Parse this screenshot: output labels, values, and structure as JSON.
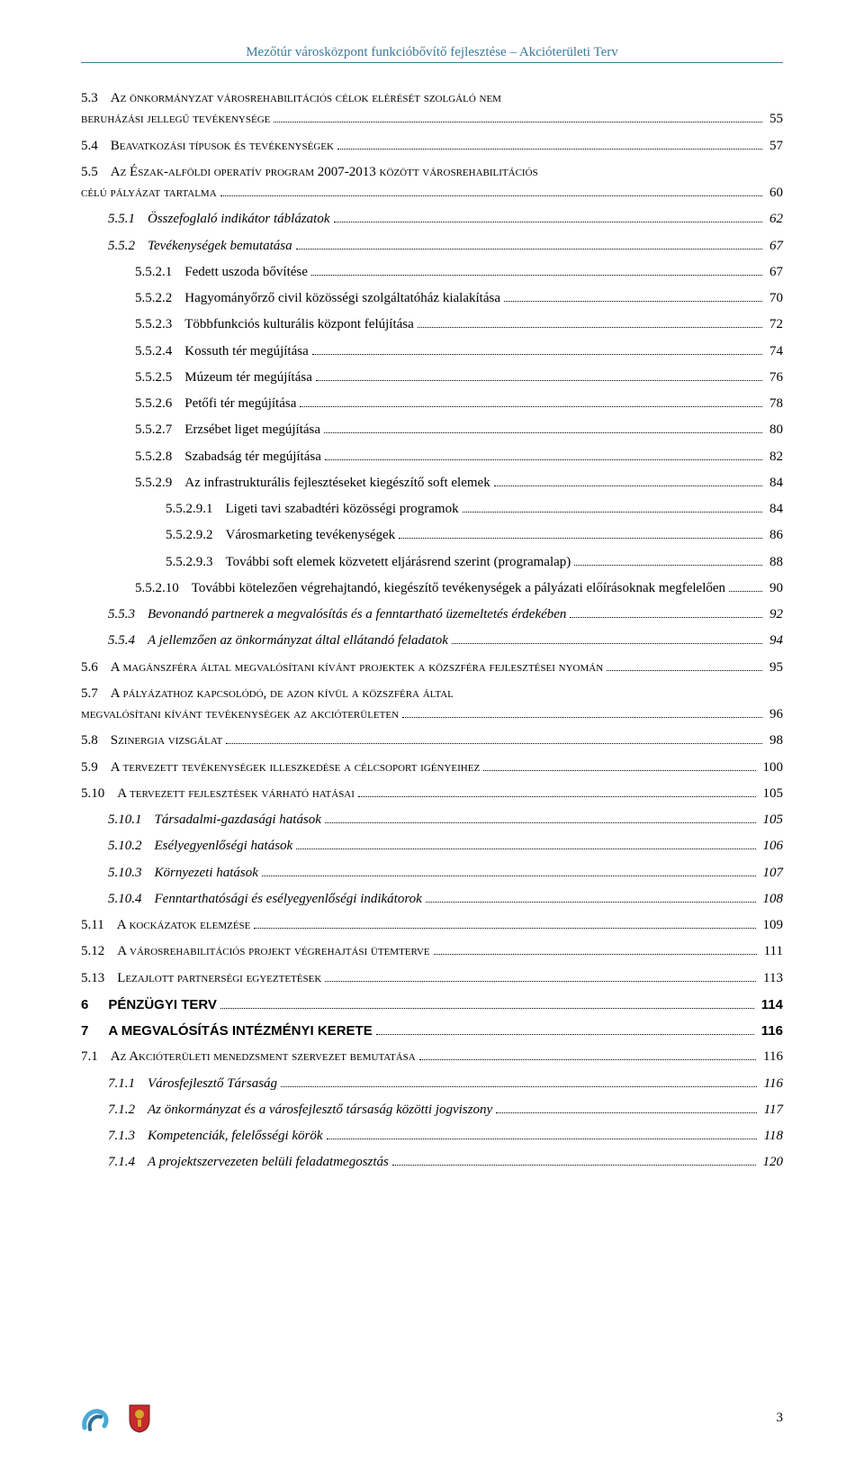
{
  "header": "Mezőtúr városközpont funkcióbővítő fejlesztése – Akcióterületi Terv",
  "pageNumber": "3",
  "colors": {
    "headerColor": "#3b7a9c",
    "text": "#000000",
    "iconBlue": "#4aa8d8",
    "iconRed": "#c52b2b",
    "iconGold": "#d4a82a"
  },
  "toc": [
    {
      "lvl": 1,
      "style": "smallcaps",
      "num": "5.3",
      "title": "Az önkormányzat városrehabilitációs célok elérését szolgáló nem beruházási jellegű tevékenysége",
      "page": "55",
      "wrap": true
    },
    {
      "lvl": 1,
      "style": "smallcaps",
      "num": "5.4",
      "title": "Beavatkozási típusok és tevékenységek",
      "page": "57"
    },
    {
      "lvl": 1,
      "style": "smallcaps",
      "num": "5.5",
      "title": "Az Észak-alföldi operatív program 2007-2013 között városrehabilitációs célú pályázat tartalma",
      "page": "60",
      "wrap": true
    },
    {
      "lvl": 2,
      "style": "italic",
      "num": "5.5.1",
      "title": "Összefoglaló indikátor táblázatok",
      "page": "62"
    },
    {
      "lvl": 2,
      "style": "italic",
      "num": "5.5.2",
      "title": "Tevékenységek bemutatása",
      "page": "67"
    },
    {
      "lvl": 3,
      "num": "5.5.2.1",
      "title": "Fedett uszoda bővítése",
      "page": "67"
    },
    {
      "lvl": 3,
      "num": "5.5.2.2",
      "title": "Hagyományőrző civil közösségi szolgáltatóház kialakítása",
      "page": "70"
    },
    {
      "lvl": 3,
      "num": "5.5.2.3",
      "title": "Többfunkciós kulturális központ felújítása",
      "page": "72"
    },
    {
      "lvl": 3,
      "num": "5.5.2.4",
      "title": "Kossuth tér megújítása",
      "page": "74"
    },
    {
      "lvl": 3,
      "num": "5.5.2.5",
      "title": "Múzeum tér megújítása",
      "page": "76"
    },
    {
      "lvl": 3,
      "num": "5.5.2.6",
      "title": "Petőfi tér megújítása",
      "page": "78"
    },
    {
      "lvl": 3,
      "num": "5.5.2.7",
      "title": "Erzsébet liget megújítása",
      "page": "80"
    },
    {
      "lvl": 3,
      "num": "5.5.2.8",
      "title": "Szabadság tér megújítása",
      "page": "82"
    },
    {
      "lvl": 3,
      "num": "5.5.2.9",
      "title": "Az infrastrukturális fejlesztéseket kiegészítő soft elemek",
      "page": "84"
    },
    {
      "lvl": 4,
      "num": "5.5.2.9.1",
      "title": "Ligeti tavi szabadtéri közösségi programok",
      "page": "84"
    },
    {
      "lvl": 4,
      "num": "5.5.2.9.2",
      "title": "Városmarketing tevékenységek",
      "page": "86"
    },
    {
      "lvl": 4,
      "num": "5.5.2.9.3",
      "title": "További soft elemek közvetett eljárásrend szerint (programalap)",
      "page": "88"
    },
    {
      "lvl": 3,
      "num": "5.5.2.10",
      "title": "További kötelezően végrehajtandó, kiegészítő tevékenységek a pályázati előírásoknak megfelelően",
      "page": "90"
    },
    {
      "lvl": 2,
      "style": "italic",
      "num": "5.5.3",
      "title": "Bevonandó partnerek a megvalósítás és a fenntartható üzemeltetés érdekében",
      "page": "92"
    },
    {
      "lvl": 2,
      "style": "italic",
      "num": "5.5.4",
      "title": "A jellemzően az önkormányzat által ellátandó feladatok",
      "page": "94"
    },
    {
      "lvl": 1,
      "style": "smallcaps",
      "num": "5.6",
      "title": "A magánszféra által megvalósítani kívánt projektek a közszféra fejlesztései nyomán",
      "page": "95"
    },
    {
      "lvl": 1,
      "style": "smallcaps",
      "num": "5.7",
      "title": "A pályázathoz kapcsolódó, de azon kívül a közszféra által megvalósítani kívánt tevékenységek az akcióterületen",
      "page": "96",
      "wrap": true
    },
    {
      "lvl": 1,
      "style": "smallcaps",
      "num": "5.8",
      "title": "Szinergia vizsgálat",
      "page": "98"
    },
    {
      "lvl": 1,
      "style": "smallcaps",
      "num": "5.9",
      "title": "A tervezett tevékenységek illeszkedése a célcsoport igényeihez",
      "page": "100"
    },
    {
      "lvl": 1,
      "style": "smallcaps",
      "num": "5.10",
      "title": "A tervezett fejlesztések várható hatásai",
      "page": "105"
    },
    {
      "lvl": 2,
      "style": "italic",
      "num": "5.10.1",
      "title": "Társadalmi-gazdasági hatások",
      "page": "105"
    },
    {
      "lvl": 2,
      "style": "italic",
      "num": "5.10.2",
      "title": "Esélyegyenlőségi hatások",
      "page": "106"
    },
    {
      "lvl": 2,
      "style": "italic",
      "num": "5.10.3",
      "title": "Környezeti hatások",
      "page": "107"
    },
    {
      "lvl": 2,
      "style": "italic",
      "num": "5.10.4",
      "title": "Fenntarthatósági és esélyegyenlőségi indikátorok",
      "page": "108"
    },
    {
      "lvl": 1,
      "style": "smallcaps",
      "num": "5.11",
      "title": "A kockázatok elemzése",
      "page": "109"
    },
    {
      "lvl": 1,
      "style": "smallcaps",
      "num": "5.12",
      "title": "A városrehabilitációs projekt végrehajtási ütemterve",
      "page": "111"
    },
    {
      "lvl": 1,
      "style": "smallcaps",
      "num": "5.13",
      "title": "Lezajlott partnerségi egyeztetések",
      "page": "113"
    },
    {
      "lvl": 0,
      "style": "chapter",
      "num": "6",
      "title": "PÉNZÜGYI TERV",
      "page": "114"
    },
    {
      "lvl": 0,
      "style": "chapter",
      "num": "7",
      "title": "A MEGVALÓSÍTÁS INTÉZMÉNYI KERETE",
      "page": "116"
    },
    {
      "lvl": 1,
      "style": "smallcaps",
      "num": "7.1",
      "title": "Az Akcióterületi menedzsment szervezet bemutatása",
      "page": "116"
    },
    {
      "lvl": 2,
      "style": "italic",
      "num": "7.1.1",
      "title": "Városfejlesztő Társaság",
      "page": "116"
    },
    {
      "lvl": 2,
      "style": "italic",
      "num": "7.1.2",
      "title": "Az önkormányzat és a városfejlesztő társaság közötti jogviszony",
      "page": "117"
    },
    {
      "lvl": 2,
      "style": "italic",
      "num": "7.1.3",
      "title": "Kompetenciák, felelősségi körök",
      "page": "118"
    },
    {
      "lvl": 2,
      "style": "italic",
      "num": "7.1.4",
      "title": "A projektszervezeten belüli feladatmegosztás",
      "page": "120"
    }
  ]
}
